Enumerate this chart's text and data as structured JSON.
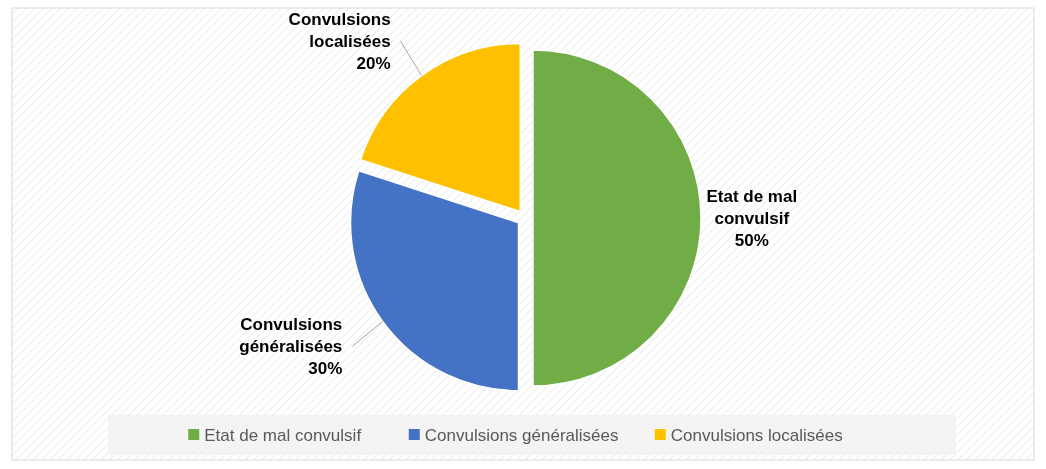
{
  "chart_data": {
    "type": "pie",
    "categories": [
      "Etat de mal convulsif",
      "Convulsions généralisées",
      "Convulsions localisées"
    ],
    "values": [
      50,
      30,
      20
    ],
    "colors": [
      "#70ad47",
      "#4472c4",
      "#ffc000"
    ],
    "value_labels": [
      "50%",
      "30%",
      "20%"
    ],
    "legend": "bottom"
  }
}
